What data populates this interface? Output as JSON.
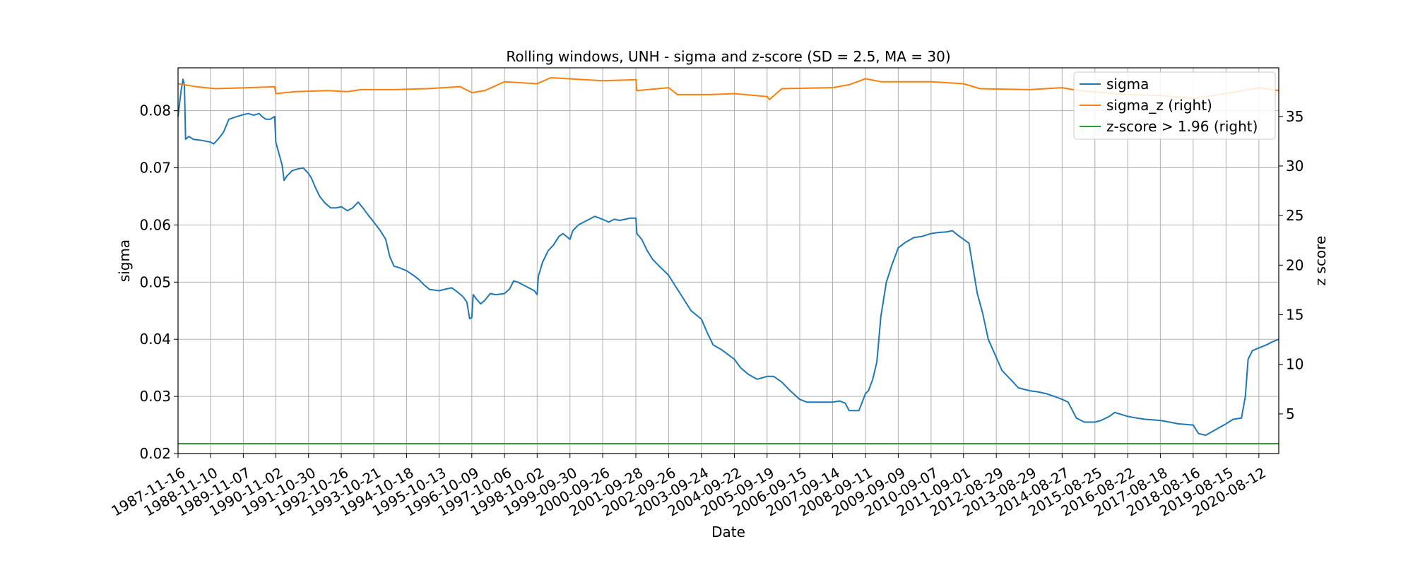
{
  "chart_data": {
    "type": "line",
    "title": "Rolling windows, UNH - sigma and z-score (SD = 2.5, MA = 30)",
    "xlabel": "Date",
    "ylabel": "sigma",
    "ylabel_right": "z score",
    "grid": true,
    "legend_position": "top-right",
    "xlim": [
      "1987-11-16",
      "2021-03-20"
    ],
    "ylim": [
      0.02,
      0.0875
    ],
    "ylim_right": [
      1.0,
      39.9
    ],
    "x_ticks": [
      "1987-11-16",
      "1988-11-10",
      "1989-11-07",
      "1990-11-02",
      "1991-10-30",
      "1992-10-26",
      "1993-10-21",
      "1994-10-18",
      "1995-10-13",
      "1996-10-09",
      "1997-10-06",
      "1998-10-02",
      "1999-09-30",
      "2000-09-26",
      "2001-09-28",
      "2002-09-26",
      "2003-09-24",
      "2004-09-22",
      "2005-09-19",
      "2006-09-15",
      "2007-09-14",
      "2008-09-11",
      "2009-09-09",
      "2010-09-07",
      "2011-09-01",
      "2012-08-29",
      "2013-08-29",
      "2014-08-27",
      "2015-08-25",
      "2016-08-22",
      "2017-08-18",
      "2018-08-16",
      "2019-08-15",
      "2020-08-12"
    ],
    "y_ticks": [
      0.02,
      0.03,
      0.04,
      0.05,
      0.06,
      0.07,
      0.08
    ],
    "y_tick_labels": [
      "0.02",
      "0.03",
      "0.04",
      "0.05",
      "0.06",
      "0.07",
      "0.08"
    ],
    "y_ticks_right": [
      5,
      10,
      15,
      20,
      25,
      30,
      35
    ],
    "series": [
      {
        "name": "sigma",
        "axis": "left",
        "color": "#1f77b4",
        "points": [
          [
            "1987-11-16",
            0.079
          ],
          [
            "1987-12-20",
            0.0835
          ],
          [
            "1988-01-10",
            0.0855
          ],
          [
            "1988-01-25",
            0.0845
          ],
          [
            "1988-02-08",
            0.075
          ],
          [
            "1988-03-15",
            0.0755
          ],
          [
            "1988-05-01",
            0.075
          ],
          [
            "1988-08-01",
            0.0748
          ],
          [
            "1988-11-10",
            0.0745
          ],
          [
            "1988-12-15",
            0.0742
          ],
          [
            "1989-02-01",
            0.075
          ],
          [
            "1989-04-01",
            0.0762
          ],
          [
            "1989-06-01",
            0.0785
          ],
          [
            "1989-09-01",
            0.079
          ],
          [
            "1989-11-07",
            0.0793
          ],
          [
            "1990-01-01",
            0.0795
          ],
          [
            "1990-03-01",
            0.0792
          ],
          [
            "1990-05-01",
            0.0795
          ],
          [
            "1990-06-01",
            0.079
          ],
          [
            "1990-07-15",
            0.0785
          ],
          [
            "1990-09-01",
            0.0785
          ],
          [
            "1990-10-20",
            0.079
          ],
          [
            "1990-11-02",
            0.0745
          ],
          [
            "1990-12-15",
            0.072
          ],
          [
            "1991-01-10",
            0.0705
          ],
          [
            "1991-02-01",
            0.0678
          ],
          [
            "1991-03-01",
            0.0685
          ],
          [
            "1991-05-01",
            0.0695
          ],
          [
            "1991-07-01",
            0.0698
          ],
          [
            "1991-09-01",
            0.07
          ],
          [
            "1991-10-30",
            0.069
          ],
          [
            "1991-12-01",
            0.0682
          ],
          [
            "1992-01-15",
            0.0665
          ],
          [
            "1992-03-01",
            0.065
          ],
          [
            "1992-05-01",
            0.0638
          ],
          [
            "1992-07-01",
            0.063
          ],
          [
            "1992-09-01",
            0.063
          ],
          [
            "1992-10-26",
            0.0632
          ],
          [
            "1993-01-01",
            0.0625
          ],
          [
            "1993-03-01",
            0.063
          ],
          [
            "1993-05-01",
            0.064
          ],
          [
            "1993-07-01",
            0.0628
          ],
          [
            "1993-09-01",
            0.0615
          ],
          [
            "1993-10-21",
            0.0605
          ],
          [
            "1994-01-01",
            0.059
          ],
          [
            "1994-03-01",
            0.0575
          ],
          [
            "1994-04-15",
            0.0545
          ],
          [
            "1994-06-01",
            0.0528
          ],
          [
            "1994-08-01",
            0.0525
          ],
          [
            "1994-10-18",
            0.052
          ],
          [
            "1995-01-01",
            0.0512
          ],
          [
            "1995-03-01",
            0.0505
          ],
          [
            "1995-05-01",
            0.0495
          ],
          [
            "1995-07-01",
            0.0487
          ],
          [
            "1995-10-13",
            0.0485
          ],
          [
            "1996-01-01",
            0.0488
          ],
          [
            "1996-03-01",
            0.049
          ],
          [
            "1996-05-01",
            0.0483
          ],
          [
            "1996-07-01",
            0.0475
          ],
          [
            "1996-08-15",
            0.0465
          ],
          [
            "1996-09-15",
            0.0436
          ],
          [
            "1996-10-09",
            0.0438
          ],
          [
            "1996-10-25",
            0.0478
          ],
          [
            "1996-12-01",
            0.047
          ],
          [
            "1997-01-15",
            0.0462
          ],
          [
            "1997-03-01",
            0.0468
          ],
          [
            "1997-05-01",
            0.048
          ],
          [
            "1997-07-01",
            0.0478
          ],
          [
            "1997-10-06",
            0.048
          ],
          [
            "1997-12-01",
            0.0488
          ],
          [
            "1998-01-15",
            0.0502
          ],
          [
            "1998-03-01",
            0.05
          ],
          [
            "1998-05-01",
            0.0495
          ],
          [
            "1998-07-01",
            0.049
          ],
          [
            "1998-09-01",
            0.0485
          ],
          [
            "1998-10-02",
            0.0478
          ],
          [
            "1998-10-15",
            0.051
          ],
          [
            "1998-12-01",
            0.0535
          ],
          [
            "1999-02-01",
            0.0555
          ],
          [
            "1999-04-01",
            0.0565
          ],
          [
            "1999-06-01",
            0.058
          ],
          [
            "1999-07-15",
            0.0585
          ],
          [
            "1999-09-30",
            0.0575
          ],
          [
            "1999-11-01",
            0.059
          ],
          [
            "2000-01-01",
            0.06
          ],
          [
            "2000-03-01",
            0.0605
          ],
          [
            "2000-05-01",
            0.061
          ],
          [
            "2000-07-01",
            0.0615
          ],
          [
            "2000-09-26",
            0.061
          ],
          [
            "2000-12-01",
            0.0605
          ],
          [
            "2001-02-01",
            0.061
          ],
          [
            "2001-04-01",
            0.0608
          ],
          [
            "2001-06-01",
            0.061
          ],
          [
            "2001-08-01",
            0.0612
          ],
          [
            "2001-09-28",
            0.0612
          ],
          [
            "2001-10-10",
            0.0585
          ],
          [
            "2001-12-01",
            0.0575
          ],
          [
            "2002-02-01",
            0.0555
          ],
          [
            "2002-04-01",
            0.054
          ],
          [
            "2002-06-01",
            0.053
          ],
          [
            "2002-09-26",
            0.0512
          ],
          [
            "2002-12-01",
            0.0495
          ],
          [
            "2003-02-01",
            0.048
          ],
          [
            "2003-04-01",
            0.0465
          ],
          [
            "2003-06-01",
            0.045
          ],
          [
            "2003-09-24",
            0.0435
          ],
          [
            "2003-12-01",
            0.041
          ],
          [
            "2004-02-01",
            0.039
          ],
          [
            "2004-05-01",
            0.0382
          ],
          [
            "2004-09-22",
            0.0365
          ],
          [
            "2004-12-01",
            0.035
          ],
          [
            "2005-03-01",
            0.0338
          ],
          [
            "2005-06-01",
            0.033
          ],
          [
            "2005-09-19",
            0.0335
          ],
          [
            "2005-12-01",
            0.0335
          ],
          [
            "2006-03-01",
            0.0325
          ],
          [
            "2006-06-01",
            0.031
          ],
          [
            "2006-09-15",
            0.0295
          ],
          [
            "2006-12-01",
            0.029
          ],
          [
            "2007-03-01",
            0.029
          ],
          [
            "2007-06-01",
            0.029
          ],
          [
            "2007-09-14",
            0.029
          ],
          [
            "2007-12-01",
            0.0292
          ],
          [
            "2008-02-01",
            0.0288
          ],
          [
            "2008-03-15",
            0.0275
          ],
          [
            "2008-07-01",
            0.0275
          ],
          [
            "2008-09-11",
            0.0305
          ],
          [
            "2008-10-15",
            0.031
          ],
          [
            "2008-12-01",
            0.033
          ],
          [
            "2009-01-15",
            0.036
          ],
          [
            "2009-03-01",
            0.044
          ],
          [
            "2009-05-01",
            0.05
          ],
          [
            "2009-07-01",
            0.053
          ],
          [
            "2009-09-09",
            0.056
          ],
          [
            "2009-12-01",
            0.057
          ],
          [
            "2010-03-01",
            0.0578
          ],
          [
            "2010-06-01",
            0.058
          ],
          [
            "2010-09-07",
            0.0585
          ],
          [
            "2010-12-01",
            0.0587
          ],
          [
            "2011-03-01",
            0.0588
          ],
          [
            "2011-05-01",
            0.059
          ],
          [
            "2011-07-01",
            0.0582
          ],
          [
            "2011-09-01",
            0.0575
          ],
          [
            "2011-11-01",
            0.0568
          ],
          [
            "2011-12-15",
            0.0525
          ],
          [
            "2012-02-01",
            0.048
          ],
          [
            "2012-04-01",
            0.0445
          ],
          [
            "2012-06-01",
            0.04
          ],
          [
            "2012-08-29",
            0.0368
          ],
          [
            "2012-11-01",
            0.0345
          ],
          [
            "2013-02-01",
            0.033
          ],
          [
            "2013-05-01",
            0.0315
          ],
          [
            "2013-08-29",
            0.031
          ],
          [
            "2013-12-01",
            0.0308
          ],
          [
            "2014-03-01",
            0.0305
          ],
          [
            "2014-06-01",
            0.03
          ],
          [
            "2014-08-27",
            0.0295
          ],
          [
            "2014-11-01",
            0.029
          ],
          [
            "2015-02-01",
            0.0262
          ],
          [
            "2015-05-01",
            0.0255
          ],
          [
            "2015-08-25",
            0.0255
          ],
          [
            "2015-11-01",
            0.0258
          ],
          [
            "2016-02-01",
            0.0265
          ],
          [
            "2016-04-01",
            0.0272
          ],
          [
            "2016-08-22",
            0.0265
          ],
          [
            "2016-12-01",
            0.0262
          ],
          [
            "2017-03-01",
            0.026
          ],
          [
            "2017-08-18",
            0.0258
          ],
          [
            "2017-12-01",
            0.0255
          ],
          [
            "2018-03-01",
            0.0252
          ],
          [
            "2018-08-16",
            0.025
          ],
          [
            "2018-10-15",
            0.0235
          ],
          [
            "2019-01-01",
            0.0232
          ],
          [
            "2019-04-01",
            0.024
          ],
          [
            "2019-08-15",
            0.0252
          ],
          [
            "2019-11-01",
            0.026
          ],
          [
            "2020-02-01",
            0.0262
          ],
          [
            "2020-03-15",
            0.03
          ],
          [
            "2020-04-15",
            0.0365
          ],
          [
            "2020-06-01",
            0.038
          ],
          [
            "2020-08-12",
            0.0385
          ],
          [
            "2020-11-01",
            0.039
          ],
          [
            "2021-01-01",
            0.0395
          ],
          [
            "2021-03-20",
            0.04
          ]
        ]
      },
      {
        "name": "sigma_z (right)",
        "axis": "right",
        "color": "#ff7f0e",
        "points": [
          [
            "1987-11-16",
            38.3
          ],
          [
            "1988-06-01",
            38.0
          ],
          [
            "1989-01-01",
            37.8
          ],
          [
            "1990-01-01",
            37.9
          ],
          [
            "1990-10-20",
            38.0
          ],
          [
            "1990-11-02",
            37.3
          ],
          [
            "1991-06-01",
            37.5
          ],
          [
            "1992-06-01",
            37.6
          ],
          [
            "1993-01-01",
            37.5
          ],
          [
            "1993-06-01",
            37.7
          ],
          [
            "1994-06-01",
            37.7
          ],
          [
            "1995-06-01",
            37.8
          ],
          [
            "1996-06-01",
            38.0
          ],
          [
            "1996-10-09",
            37.4
          ],
          [
            "1997-03-01",
            37.6
          ],
          [
            "1997-10-06",
            38.5
          ],
          [
            "1998-10-02",
            38.3
          ],
          [
            "1999-03-01",
            38.9
          ],
          [
            "2000-03-01",
            38.7
          ],
          [
            "2000-09-26",
            38.6
          ],
          [
            "2001-09-28",
            38.7
          ],
          [
            "2001-10-10",
            37.6
          ],
          [
            "2002-09-26",
            37.9
          ],
          [
            "2003-01-01",
            37.2
          ],
          [
            "2004-01-01",
            37.2
          ],
          [
            "2004-09-22",
            37.3
          ],
          [
            "2005-09-19",
            37.0
          ],
          [
            "2005-10-15",
            36.7
          ],
          [
            "2006-03-01",
            37.8
          ],
          [
            "2007-09-14",
            37.9
          ],
          [
            "2008-03-15",
            38.2
          ],
          [
            "2008-09-11",
            38.8
          ],
          [
            "2009-03-01",
            38.5
          ],
          [
            "2010-09-07",
            38.5
          ],
          [
            "2011-09-01",
            38.3
          ],
          [
            "2012-03-01",
            37.8
          ],
          [
            "2013-08-29",
            37.7
          ],
          [
            "2014-08-27",
            37.9
          ],
          [
            "2015-03-01",
            37.6
          ],
          [
            "2016-08-22",
            37.2
          ],
          [
            "2017-08-18",
            37.1
          ],
          [
            "2018-08-16",
            36.8
          ],
          [
            "2019-08-15",
            37.3
          ],
          [
            "2020-08-12",
            37.9
          ],
          [
            "2021-03-20",
            37.6
          ]
        ]
      },
      {
        "name": "z-score > 1.96 (right)",
        "axis": "right",
        "color": "#2ca02c",
        "points": [
          [
            "1987-11-16",
            2.0
          ],
          [
            "2021-03-20",
            2.0
          ]
        ]
      }
    ]
  }
}
